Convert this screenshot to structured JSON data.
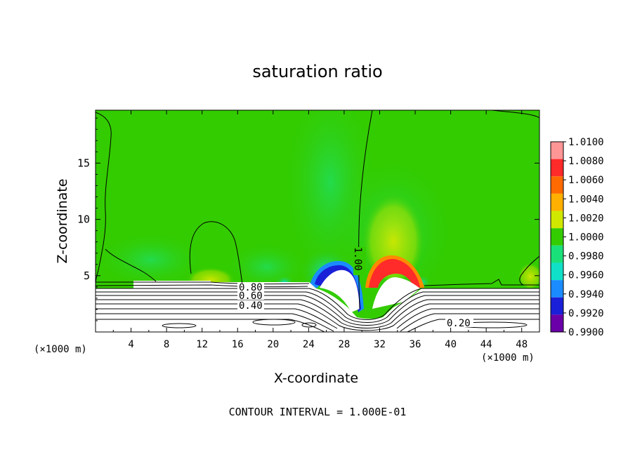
{
  "chart_data": {
    "type": "heatmap",
    "title": "saturation ratio",
    "xlabel": "X-coordinate",
    "ylabel": "Z-coordinate",
    "x_unit_left": "(×1000 m)",
    "x_unit_right": "(×1000 m)",
    "footnote": "CONTOUR INTERVAL = 1.000E-01",
    "xlim": [
      0,
      50
    ],
    "ylim": [
      0,
      19.7
    ],
    "x_ticks": [
      "4",
      "8",
      "12",
      "16",
      "20",
      "24",
      "28",
      "32",
      "36",
      "40",
      "44",
      "48"
    ],
    "y_ticks": [
      "5",
      "10",
      "15"
    ],
    "colorbar": {
      "levels": [
        "1.0100",
        "1.0080",
        "1.0060",
        "1.0040",
        "1.0020",
        "1.0000",
        "0.9980",
        "0.9960",
        "0.9940",
        "0.9920",
        "0.9900"
      ],
      "colors": [
        "#ff9696",
        "#ff2a2a",
        "#ff6a00",
        "#ffb000",
        "#d0e800",
        "#33cc00",
        "#1ae07a",
        "#10e0c8",
        "#1a8cff",
        "#1a20d8",
        "#6a00a8"
      ]
    },
    "contour_labels": [
      "1.00",
      "0.80",
      "0.60",
      "0.40",
      "0.20"
    ]
  }
}
